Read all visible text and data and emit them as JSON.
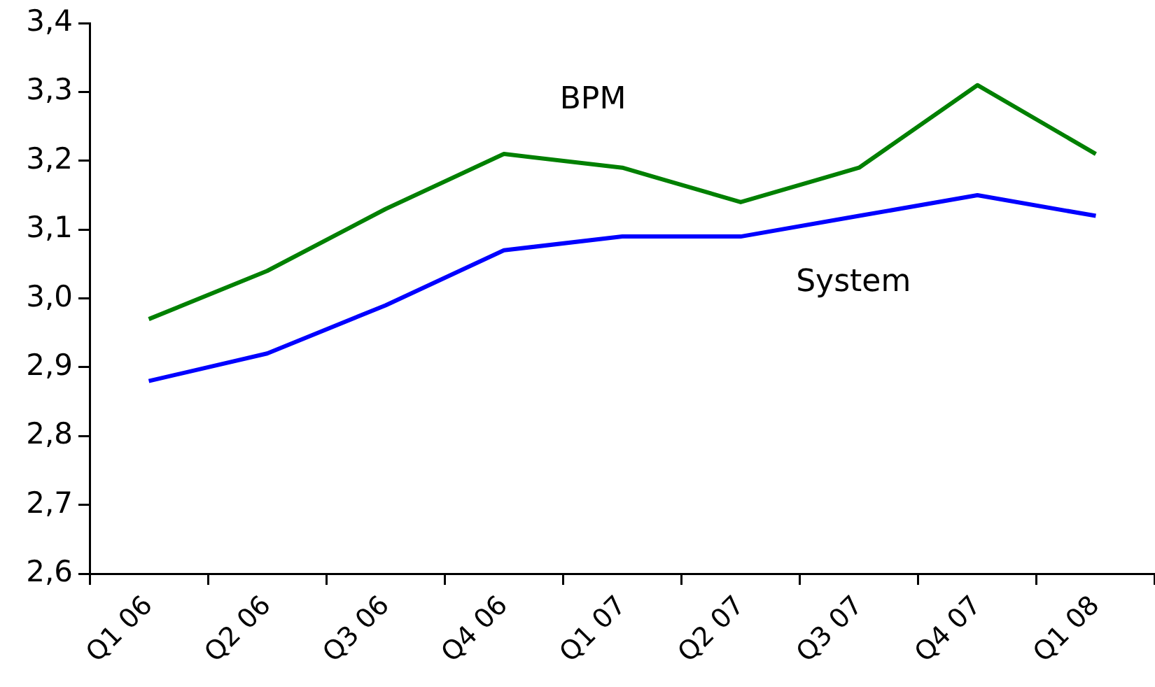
{
  "chart_data": {
    "type": "line",
    "categories": [
      "Q1 06",
      "Q2 06",
      "Q3 06",
      "Q4 06",
      "Q1 07",
      "Q2 07",
      "Q3 07",
      "Q4 07",
      "Q1 08"
    ],
    "series": [
      {
        "name": "BPM",
        "color": "#008000",
        "values": [
          2.97,
          3.04,
          3.13,
          3.21,
          3.19,
          3.14,
          3.19,
          3.31,
          3.21
        ]
      },
      {
        "name": "System",
        "color": "#0000ff",
        "values": [
          2.88,
          2.92,
          2.99,
          3.07,
          3.09,
          3.09,
          3.12,
          3.15,
          3.12
        ]
      }
    ],
    "ylim": [
      2.6,
      3.4
    ],
    "yticks": [
      {
        "value": 2.6,
        "label": "2,6"
      },
      {
        "value": 2.7,
        "label": "2,7"
      },
      {
        "value": 2.8,
        "label": "2,8"
      },
      {
        "value": 2.9,
        "label": "2,9"
      },
      {
        "value": 3.0,
        "label": "3,0"
      },
      {
        "value": 3.1,
        "label": "3,1"
      },
      {
        "value": 3.2,
        "label": "3,2"
      },
      {
        "value": 3.3,
        "label": "3,3"
      },
      {
        "value": 3.4,
        "label": "3,4"
      }
    ]
  }
}
